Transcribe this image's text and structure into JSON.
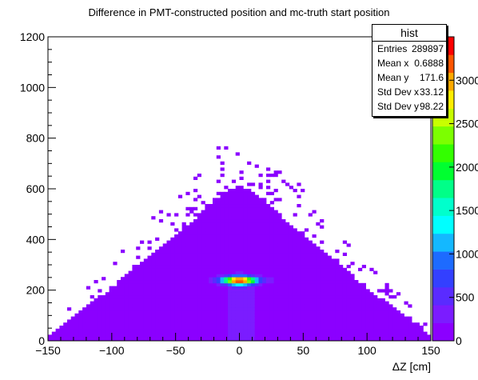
{
  "chart_data": {
    "type": "heatmap",
    "title": "Difference in PMT-constructed position and mc-truth start position",
    "xlabel": "ΔZ [cm]",
    "ylabel": "",
    "xlim": [
      -150,
      150
    ],
    "ylim": [
      0,
      1200
    ],
    "zlim": [
      0,
      3500
    ],
    "x_ticks": [
      "−150",
      "−100",
      "−50",
      "0",
      "50",
      "100",
      "150"
    ],
    "y_ticks": [
      "0",
      "200",
      "400",
      "600",
      "800",
      "1000",
      "1200"
    ],
    "z_ticks": [
      "0",
      "500",
      "1000",
      "1500",
      "2000",
      "2500",
      "3000"
    ],
    "palette": [
      "#8b00ff",
      "#7b1cff",
      "#5a2bff",
      "#3340ff",
      "#1d6bff",
      "#14b8ff",
      "#00ffff",
      "#00ffcc",
      "#00ff88",
      "#00ff30",
      "#33ff00",
      "#7cff00",
      "#c8ff00",
      "#ffee00",
      "#ffaa00",
      "#ff5500",
      "#ff0000"
    ],
    "envelope": {
      "description_points": [
        {
          "x": -150,
          "y_top": 20
        },
        {
          "x": -100,
          "y_top": 210
        },
        {
          "x": -50,
          "y_top": 420
        },
        {
          "x": -10,
          "y_top": 590
        },
        {
          "x": 0,
          "y_top": 610
        },
        {
          "x": 10,
          "y_top": 590
        },
        {
          "x": 50,
          "y_top": 420
        },
        {
          "x": 100,
          "y_top": 210
        },
        {
          "x": 150,
          "y_top": 20
        }
      ]
    },
    "hotspot": {
      "x": 0,
      "y": 240,
      "peak": 3300
    },
    "stats": {
      "name": "hist",
      "entries": {
        "label": "Entries",
        "value": "289897"
      },
      "mean_x": {
        "label": "Mean x",
        "value": "0.6888"
      },
      "mean_y": {
        "label": "Mean y",
        "value": "171.6"
      },
      "std_x": {
        "label": "Std Dev x",
        "value": "33.12"
      },
      "std_y": {
        "label": "Std Dev y",
        "value": "98.22"
      }
    }
  }
}
